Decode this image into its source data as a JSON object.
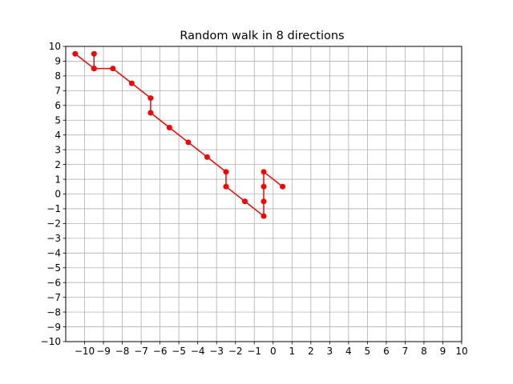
{
  "chart_data": {
    "type": "line",
    "title": "Random walk in 8 directions",
    "xlabel": "",
    "ylabel": "",
    "xlim": [
      -11,
      10
    ],
    "ylim": [
      -10,
      10
    ],
    "xticks": [
      -10,
      -9,
      -8,
      -7,
      -6,
      -5,
      -4,
      -3,
      -2,
      -1,
      0,
      1,
      2,
      3,
      4,
      5,
      6,
      7,
      8,
      9,
      10
    ],
    "yticks": [
      -10,
      -9,
      -8,
      -7,
      -6,
      -5,
      -4,
      -3,
      -2,
      -1,
      0,
      1,
      2,
      3,
      4,
      5,
      6,
      7,
      8,
      9,
      10
    ],
    "grid": true,
    "legend": "none",
    "series": [
      {
        "color": "#ff0000",
        "marker": "circle",
        "points": [
          [
            0.5,
            0.5
          ],
          [
            -0.5,
            1.5
          ],
          [
            -0.5,
            0.5
          ],
          [
            -0.5,
            -0.5
          ],
          [
            -0.5,
            -1.5
          ],
          [
            -1.5,
            -0.5
          ],
          [
            -2.5,
            0.5
          ],
          [
            -2.5,
            1.5
          ],
          [
            -3.5,
            2.5
          ],
          [
            -4.5,
            3.5
          ],
          [
            -5.5,
            4.5
          ],
          [
            -6.5,
            5.5
          ],
          [
            -6.5,
            6.5
          ],
          [
            -7.5,
            7.5
          ],
          [
            -8.5,
            8.5
          ],
          [
            -9.5,
            8.5
          ],
          [
            -9.5,
            9.5
          ],
          [
            -9.5,
            8.5
          ],
          [
            -10.5,
            9.5
          ]
        ]
      }
    ]
  }
}
